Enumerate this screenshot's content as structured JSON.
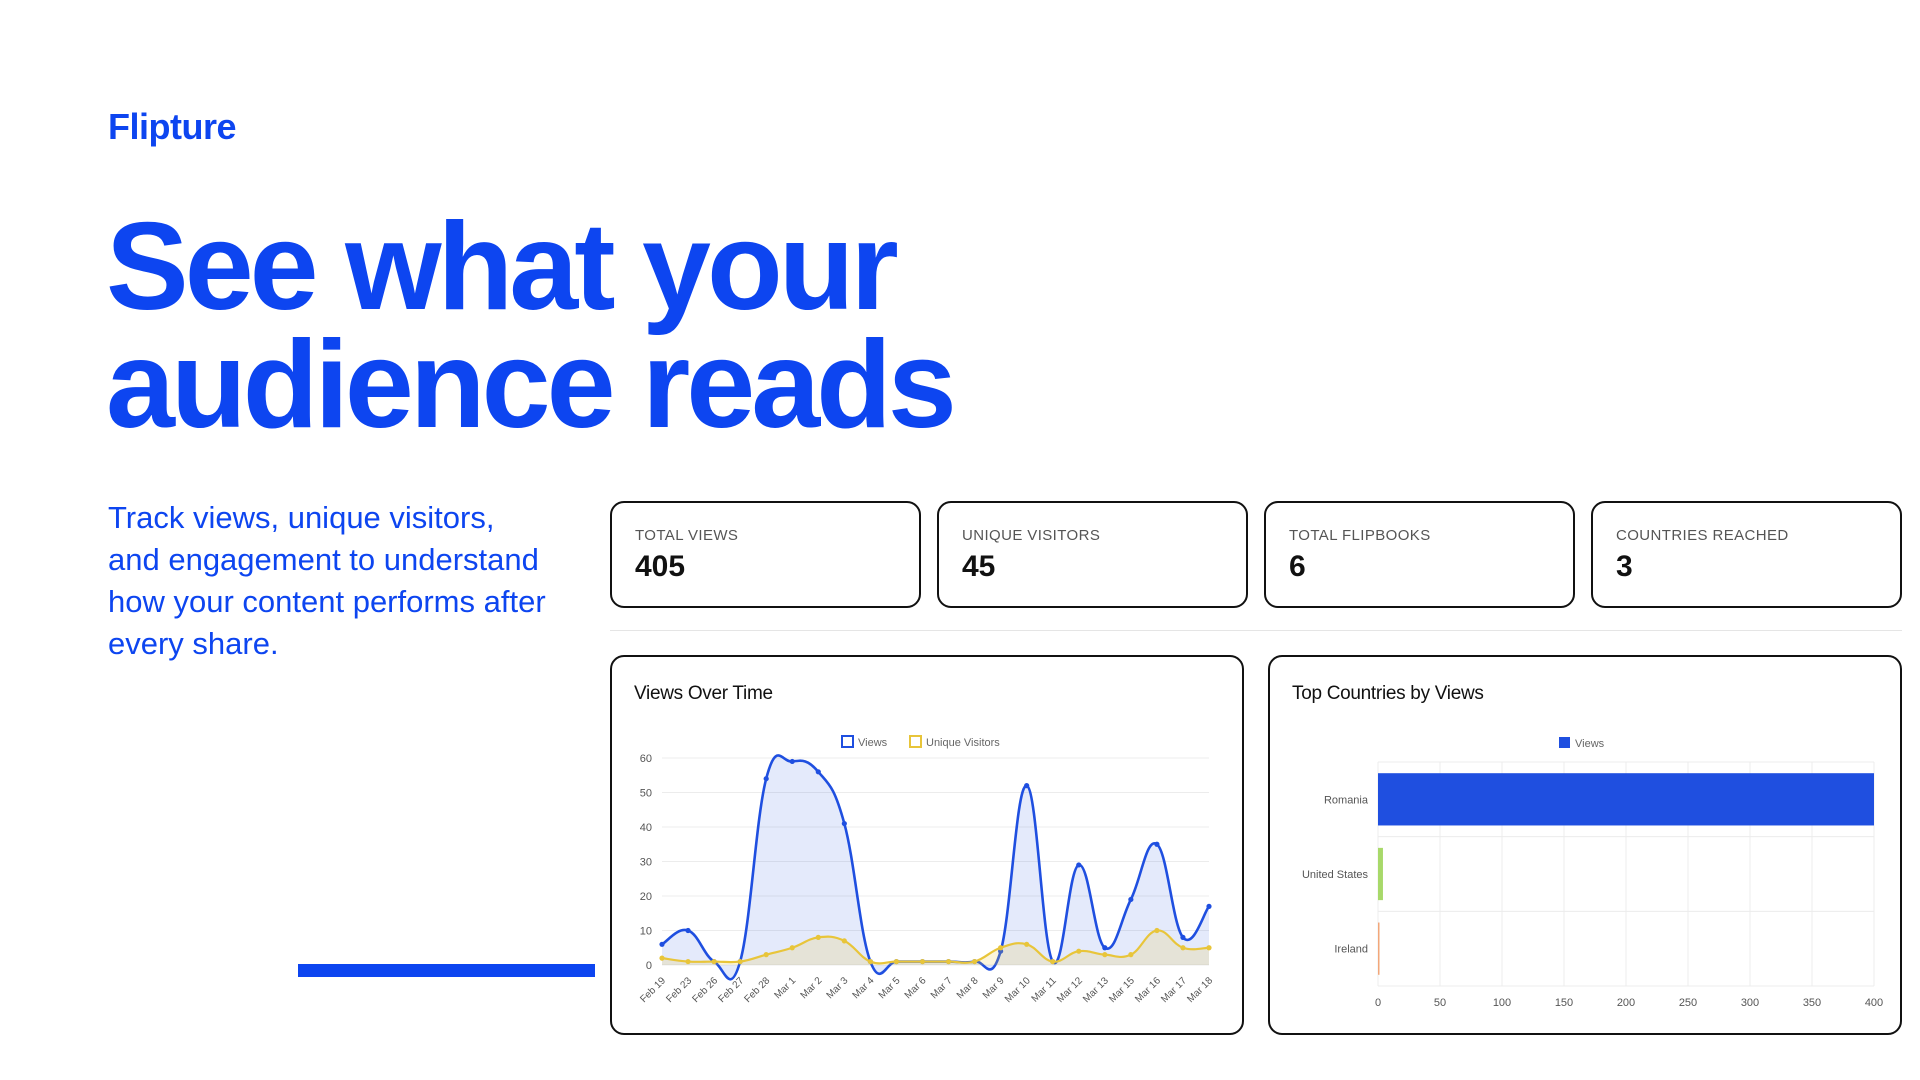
{
  "brand": "Flipture",
  "headline": {
    "line1": "See what your",
    "line2": "audience reads"
  },
  "lead": "Track views, unique visitors, and engagement to understand how your content performs after every share.",
  "stats": [
    {
      "label": "TOTAL VIEWS",
      "value": "405"
    },
    {
      "label": "UNIQUE VISITORS",
      "value": "45"
    },
    {
      "label": "TOTAL FLIPBOOKS",
      "value": "6"
    },
    {
      "label": "COUNTRIES REACHED",
      "value": "3"
    }
  ],
  "colors": {
    "accent": "#0d45f0",
    "views": "#1f4fe0",
    "unique": "#e8c53a",
    "us_bar": "#a8d96a",
    "ireland_bar": "#f2a77a"
  },
  "chart_data": [
    {
      "type": "line",
      "title": "Views Over Time",
      "categories": [
        "Feb 19",
        "Feb 23",
        "Feb 26",
        "Feb 27",
        "Feb 28",
        "Mar 1",
        "Mar 2",
        "Mar 3",
        "Mar 4",
        "Mar 5",
        "Mar 6",
        "Mar 7",
        "Mar 8",
        "Mar 9",
        "Mar 10",
        "Mar 11",
        "Mar 12",
        "Mar 13",
        "Mar 15",
        "Mar 16",
        "Mar 17",
        "Mar 18"
      ],
      "series": [
        {
          "name": "Views",
          "values": [
            6,
            10,
            1,
            1,
            54,
            59,
            56,
            41,
            1,
            1,
            1,
            1,
            1,
            4,
            52,
            1,
            29,
            5,
            19,
            35,
            8,
            17
          ]
        },
        {
          "name": "Unique Visitors",
          "values": [
            2,
            1,
            1,
            1,
            3,
            5,
            8,
            7,
            1,
            1,
            1,
            1,
            1,
            5,
            6,
            1,
            4,
            3,
            3,
            10,
            5,
            5
          ]
        }
      ],
      "ylim": [
        0,
        60
      ],
      "yticks": [
        0,
        10,
        20,
        30,
        40,
        50,
        60
      ],
      "legend": "top",
      "grid": true
    },
    {
      "type": "bar",
      "orientation": "horizontal",
      "title": "Top Countries by Views",
      "categories": [
        "Romania",
        "United States",
        "Ireland"
      ],
      "series": [
        {
          "name": "Views",
          "values": [
            400,
            4,
            1
          ]
        }
      ],
      "xlim": [
        0,
        400
      ],
      "xticks": [
        0,
        50,
        100,
        150,
        200,
        250,
        300,
        350,
        400
      ],
      "legend": "top",
      "grid": true
    }
  ]
}
